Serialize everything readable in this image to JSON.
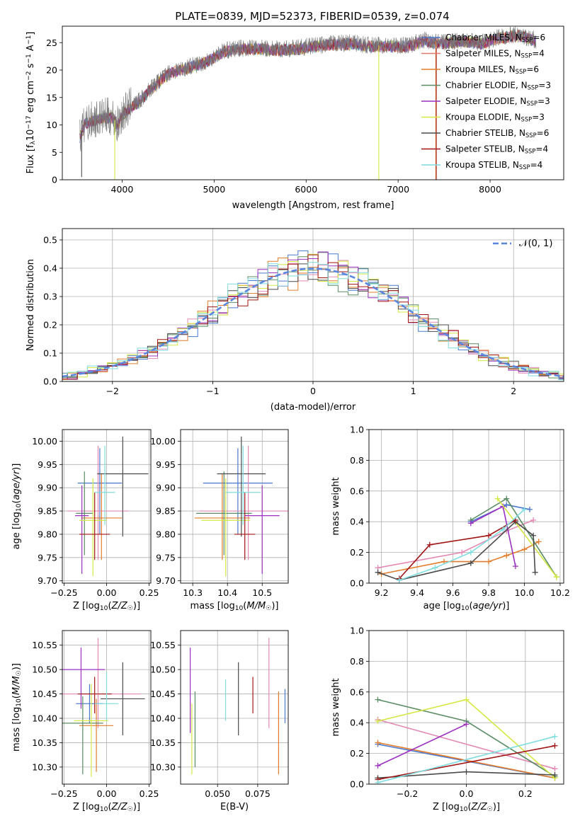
{
  "colors": {
    "palette": {
      "chabrier_miles": "#4a78ce",
      "salpeter_miles": "#e2786c",
      "kroupa_miles": "#e37d2b",
      "chabrier_elodie": "#5a8c64",
      "salpeter_elodie": "#9b31c0",
      "kroupa_elodie": "#d4e844",
      "chabrier_stelib": "#4b4b4b",
      "salpeter_stelib": "#a11515",
      "kroupa_stelib": "#7fdcdf",
      "pink": "#e489b5",
      "normal_curve": "#5a86e0",
      "grid": "#b0b0b0"
    }
  },
  "chart_data": [
    {
      "id": "spectrum",
      "type": "line",
      "title": "PLATE=0839, MJD=52373, FIBERID=0539, z=0.074",
      "xlabel": "wavelength [Angstrom, rest frame]",
      "ylabel": "Flux [f_λ 10^-17 erg cm^-2 s^-1 A^-1]",
      "xlim": [
        3350,
        8800
      ],
      "ylim": [
        0,
        28
      ],
      "xticks": [
        4000,
        5000,
        6000,
        7000,
        8000
      ],
      "yticks": [
        0,
        5,
        10,
        15,
        20,
        25
      ],
      "grid": false,
      "legend_position": "top-right",
      "legend": [
        {
          "name": "Chabrier MILES, N_SSP=6",
          "color": "#4a78ce"
        },
        {
          "name": "Salpeter MILES, N_SSP=4",
          "color": "#e2786c"
        },
        {
          "name": "Kroupa MILES, N_SSP=6",
          "color": "#e37d2b"
        },
        {
          "name": "Chabrier ELODIE, N_SSP=3",
          "color": "#5a8c64"
        },
        {
          "name": "Salpeter ELODIE, N_SSP=3",
          "color": "#9b31c0"
        },
        {
          "name": "Kroupa ELODIE, N_SSP=3",
          "color": "#d4e844"
        },
        {
          "name": "Chabrier STELIB, N_SSP=6",
          "color": "#4b4b4b"
        },
        {
          "name": "Salpeter STELIB, N_SSP=4",
          "color": "#a11515"
        },
        {
          "name": "Kroupa STELIB, N_SSP=4",
          "color": "#7fdcdf"
        }
      ],
      "observed_envelope": {
        "x": [
          3540,
          3600,
          3700,
          3800,
          3900,
          3950,
          4000,
          4100,
          4200,
          4300,
          4500,
          4700,
          4900,
          5100,
          5300,
          5500,
          5700,
          5900,
          6100,
          6300,
          6500,
          6700,
          6900,
          7100,
          7300,
          7500,
          7700,
          7900,
          8100,
          8300,
          8500
        ],
        "y": [
          8.0,
          10.5,
          11.0,
          11.5,
          11.5,
          10.0,
          12.0,
          13.5,
          14.5,
          16.5,
          19.5,
          20.5,
          21.5,
          23.5,
          24.0,
          24.0,
          23.8,
          24.0,
          24.5,
          24.8,
          25.0,
          24.5,
          24.5,
          24.5,
          25.5,
          25.0,
          25.5,
          25.0,
          26.0,
          26.5,
          25.5
        ]
      },
      "outlier_drops": [
        {
          "x": 3560,
          "y": 0.5
        },
        {
          "x": 3920,
          "y": 0
        },
        {
          "x": 6790,
          "y": 0
        },
        {
          "x": 7410,
          "y": 0
        }
      ]
    },
    {
      "id": "residuals",
      "type": "bar",
      "xlabel": "(data-model)/error",
      "ylabel": "Normed distribution",
      "xlim": [
        -2.5,
        2.5
      ],
      "ylim": [
        0,
        0.54
      ],
      "xticks": [
        -2,
        -1,
        0,
        1,
        2
      ],
      "yticks": [
        0.0,
        0.1,
        0.2,
        0.3,
        0.4,
        0.5
      ],
      "grid": true,
      "legend_position": "top-right",
      "curve_label": "𝒩(0, 1)",
      "bin_width": 0.1
    },
    {
      "id": "age_vs_z",
      "type": "scatter",
      "xlabel": "Z [log10(Z/Z☉)]",
      "ylabel": "age  [log10(age/yr)]",
      "xlim": [
        -0.26,
        0.26
      ],
      "ylim": [
        9.695,
        10.025
      ],
      "xticks": [
        -0.25,
        0.0,
        0.25
      ],
      "yticks": [
        9.7,
        9.75,
        9.8,
        9.85,
        9.9,
        9.95,
        10.0
      ],
      "grid": true,
      "series": [
        {
          "x": -0.04,
          "y": 9.91,
          "xerr": 0.13,
          "ylo": 9.8,
          "yhi": 9.985
        },
        {
          "x": -0.05,
          "y": 9.85,
          "xerr": 0.18,
          "ylo": 9.745,
          "yhi": 9.99
        },
        {
          "x": -0.03,
          "y": 9.835,
          "xerr": 0.12,
          "ylo": 9.745,
          "yhi": 9.93
        },
        {
          "x": -0.13,
          "y": 9.845,
          "xerr": 0.05,
          "ylo": 9.755,
          "yhi": 9.935
        },
        {
          "x": -0.145,
          "y": 9.84,
          "xerr": 0.04,
          "ylo": 9.715,
          "yhi": 9.905
        },
        {
          "x": -0.08,
          "y": 9.83,
          "xerr": 0.08,
          "ylo": 9.71,
          "yhi": 9.92
        },
        {
          "x": 0.095,
          "y": 9.93,
          "xerr": 0.15,
          "ylo": 9.795,
          "yhi": 10.01
        },
        {
          "x": -0.07,
          "y": 9.8,
          "xerr": 0.09,
          "ylo": 9.745,
          "yhi": 9.89
        },
        {
          "x": -0.01,
          "y": 9.89,
          "xerr": 0.06,
          "ylo": 9.82,
          "yhi": 9.99
        }
      ]
    },
    {
      "id": "age_vs_mass",
      "type": "scatter",
      "xlabel": "mass [log10(M/M☉)]",
      "ylabel": "",
      "xlim": [
        10.265,
        10.575
      ],
      "ylim": [
        9.695,
        10.025
      ],
      "xticks": [
        10.3,
        10.4,
        10.5
      ],
      "yticks": [
        9.7,
        9.75,
        9.8,
        9.85,
        9.9,
        9.95,
        10.0
      ],
      "grid": true,
      "series": [
        {
          "x": 10.43,
          "y": 9.91,
          "xerr": 0.1,
          "ylo": 9.8,
          "yhi": 9.985
        },
        {
          "x": 10.46,
          "y": 9.85,
          "xerr": 0.14,
          "ylo": 9.745,
          "yhi": 9.99
        },
        {
          "x": 10.385,
          "y": 9.835,
          "xerr": 0.08,
          "ylo": 9.745,
          "yhi": 9.93
        },
        {
          "x": 10.39,
          "y": 9.845,
          "xerr": 0.08,
          "ylo": 9.755,
          "yhi": 9.935
        },
        {
          "x": 10.5,
          "y": 9.84,
          "xerr": 0.05,
          "ylo": 9.715,
          "yhi": 9.905
        },
        {
          "x": 10.395,
          "y": 9.83,
          "xerr": 0.07,
          "ylo": 9.71,
          "yhi": 9.92
        },
        {
          "x": 10.44,
          "y": 9.93,
          "xerr": 0.07,
          "ylo": 9.795,
          "yhi": 10.01
        },
        {
          "x": 10.45,
          "y": 9.8,
          "xerr": 0.03,
          "ylo": 9.745,
          "yhi": 9.89
        },
        {
          "x": 10.445,
          "y": 9.89,
          "xerr": 0.05,
          "ylo": 9.82,
          "yhi": 9.99
        }
      ]
    },
    {
      "id": "weight_vs_age",
      "type": "line",
      "xlabel": "age  [log10(age/yr)]",
      "ylabel": "mass weight",
      "xlim": [
        9.13,
        10.22
      ],
      "ylim": [
        0,
        1.0
      ],
      "xticks": [
        9.2,
        9.4,
        9.6,
        9.8,
        10.0,
        10.2
      ],
      "yticks": [
        0.0,
        0.2,
        0.4,
        0.6,
        0.8,
        1.0
      ],
      "grid": true,
      "series": [
        {
          "x": [
            9.7,
            9.9,
            10.03
          ],
          "y": [
            0.4,
            0.51,
            0.48
          ]
        },
        {
          "x": [
            9.18,
            9.65,
            9.9,
            10.05
          ],
          "y": [
            0.1,
            0.2,
            0.34,
            0.41
          ]
        },
        {
          "x": [
            9.2,
            9.55,
            9.8,
            9.9,
            10.0,
            10.08
          ],
          "y": [
            0.06,
            0.14,
            0.14,
            0.18,
            0.22,
            0.27
          ]
        },
        {
          "x": [
            9.7,
            9.9,
            10.18
          ],
          "y": [
            0.41,
            0.55,
            0.04
          ]
        },
        {
          "x": [
            9.7,
            9.88,
            9.95
          ],
          "y": [
            0.39,
            0.5,
            0.11
          ]
        },
        {
          "x": [
            9.85,
            10.18
          ],
          "y": [
            0.55,
            0.04
          ]
        },
        {
          "x": [
            9.18,
            9.3,
            9.7,
            9.95,
            10.05,
            10.06
          ],
          "y": [
            0.07,
            0.02,
            0.13,
            0.4,
            0.31,
            0.07
          ]
        },
        {
          "x": [
            9.3,
            9.47,
            9.8,
            9.95
          ],
          "y": [
            0.03,
            0.25,
            0.31,
            0.41
          ]
        },
        {
          "x": [
            9.3,
            9.5,
            9.7,
            9.88,
            10.0
          ],
          "y": [
            0.02,
            0.1,
            0.2,
            0.35,
            0.48
          ]
        }
      ]
    },
    {
      "id": "mass_vs_z",
      "type": "scatter",
      "xlabel": "Z [log10(Z/Z☉)]",
      "ylabel": "mass [log10(M/M☉)]",
      "xlim": [
        -0.26,
        0.26
      ],
      "ylim": [
        10.265,
        10.58
      ],
      "xticks": [
        -0.25,
        0.0,
        0.25
      ],
      "yticks": [
        10.3,
        10.35,
        10.4,
        10.45,
        10.5,
        10.55
      ],
      "grid": true,
      "series": [
        {
          "x": -0.1,
          "y": 10.43,
          "xerr": 0.08,
          "ylo": 10.39,
          "yhi": 10.47
        },
        {
          "x": -0.05,
          "y": 10.45,
          "xerr": 0.25,
          "ylo": 10.38,
          "yhi": 10.565
        },
        {
          "x": -0.06,
          "y": 10.385,
          "xerr": 0.1,
          "ylo": 10.29,
          "yhi": 10.44
        },
        {
          "x": -0.14,
          "y": 10.39,
          "xerr": 0.12,
          "ylo": 10.285,
          "yhi": 10.445
        },
        {
          "x": -0.15,
          "y": 10.5,
          "xerr": 0.14,
          "ylo": 10.42,
          "yhi": 10.545
        },
        {
          "x": -0.09,
          "y": 10.395,
          "xerr": 0.1,
          "ylo": 10.28,
          "yhi": 10.47
        },
        {
          "x": 0.095,
          "y": 10.44,
          "xerr": 0.13,
          "ylo": 10.365,
          "yhi": 10.515
        },
        {
          "x": -0.07,
          "y": 10.45,
          "xerr": 0.1,
          "ylo": 10.41,
          "yhi": 10.485
        },
        {
          "x": 0.0,
          "y": 10.43,
          "xerr": 0.07,
          "ylo": 10.395,
          "yhi": 10.495
        }
      ]
    },
    {
      "id": "mass_vs_ebv",
      "type": "scatter",
      "xlabel": "E(B-V)",
      "ylabel": "",
      "xlim": [
        0.027,
        0.094
      ],
      "ylim": [
        10.265,
        10.58
      ],
      "xticks": [
        0.05,
        0.075
      ],
      "yticks": [
        10.3,
        10.35,
        10.4,
        10.45,
        10.5,
        10.55
      ],
      "grid": true,
      "series": [
        {
          "x": 0.092,
          "ylo": 10.39,
          "yhi": 10.46
        },
        {
          "x": 0.082,
          "ylo": 10.38,
          "yhi": 10.565
        },
        {
          "x": 0.088,
          "ylo": 10.285,
          "yhi": 10.455
        },
        {
          "x": 0.036,
          "ylo": 10.3,
          "yhi": 10.455
        },
        {
          "x": 0.033,
          "ylo": 10.37,
          "yhi": 10.545
        },
        {
          "x": 0.034,
          "ylo": 10.285,
          "yhi": 10.43
        },
        {
          "x": 0.063,
          "ylo": 10.365,
          "yhi": 10.515
        },
        {
          "x": 0.072,
          "ylo": 10.41,
          "yhi": 10.485
        },
        {
          "x": 0.055,
          "ylo": 10.395,
          "yhi": 10.48
        }
      ]
    },
    {
      "id": "weight_vs_z",
      "type": "line",
      "xlabel": "Z [log10(Z/Z☉)]",
      "ylabel": "mass weight",
      "xlim": [
        -0.33,
        0.33
      ],
      "ylim": [
        0,
        1.0
      ],
      "xticks": [
        -0.2,
        0.0,
        0.2
      ],
      "yticks": [
        0.0,
        0.2,
        0.4,
        0.6,
        0.8,
        1.0
      ],
      "grid": true,
      "series": [
        {
          "x": [
            -0.3,
            0.3
          ],
          "y": [
            0.26,
            0.04
          ]
        },
        {
          "x": [
            -0.3,
            0.3
          ],
          "y": [
            0.42,
            0.1
          ]
        },
        {
          "x": [
            -0.3,
            0.3
          ],
          "y": [
            0.27,
            0.04
          ]
        },
        {
          "x": [
            -0.3,
            0.0,
            0.3
          ],
          "y": [
            0.55,
            0.41,
            0.05
          ]
        },
        {
          "x": [
            -0.3,
            0.0
          ],
          "y": [
            0.12,
            0.39
          ]
        },
        {
          "x": [
            -0.3,
            0.0,
            0.3
          ],
          "y": [
            0.41,
            0.55,
            0.04
          ]
        },
        {
          "x": [
            -0.3,
            0.0,
            0.3
          ],
          "y": [
            0.04,
            0.08,
            0.06
          ]
        },
        {
          "x": [
            -0.3,
            0.3
          ],
          "y": [
            0.03,
            0.25
          ]
        },
        {
          "x": [
            -0.3,
            0.3
          ],
          "y": [
            0.01,
            0.31
          ]
        }
      ]
    }
  ]
}
